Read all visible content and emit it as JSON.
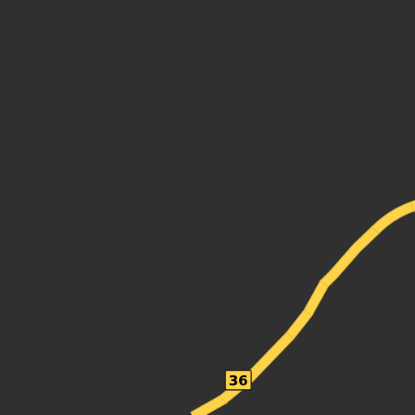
{
  "map": {
    "background_color": "#303030",
    "road": {
      "type": "highway",
      "color": "#fdd34a",
      "shield": {
        "number": "36",
        "color": "#fdd34a"
      }
    }
  }
}
